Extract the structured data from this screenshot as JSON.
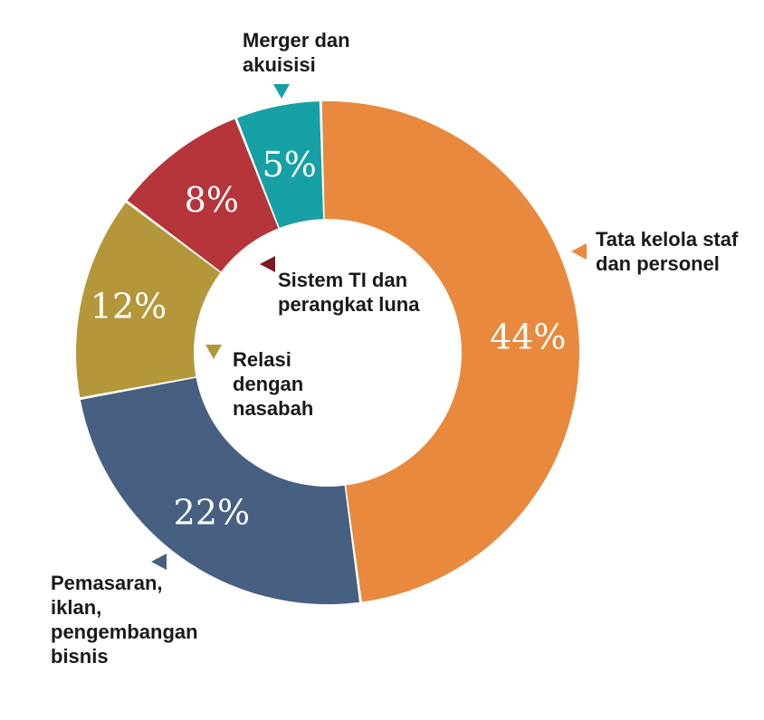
{
  "chart_data": {
    "type": "pie",
    "title": "",
    "slices": [
      {
        "label": [
          "Tata kelola staf",
          "dan personel"
        ],
        "value": 44,
        "value_label": "44%",
        "color": "#E8893D"
      },
      {
        "label": [
          "Pemasaran,",
          "iklan,",
          "pengembangan",
          "bisnis"
        ],
        "value": 22,
        "value_label": "22%",
        "color": "#475F80"
      },
      {
        "label": [
          "Relasi",
          "dengan",
          "nasabah"
        ],
        "value": 12,
        "value_label": "12%",
        "color": "#B3973A"
      },
      {
        "label": [
          "Sistem TI dan",
          "perangkat luna"
        ],
        "value": 8,
        "value_label": "8%",
        "color": "#B5353A"
      },
      {
        "label": [
          "Merger dan",
          "akuisisi"
        ],
        "value": 5,
        "value_label": "5%",
        "color": "#17A0A6"
      }
    ],
    "marker_colors": [
      "#E8893D",
      "#475F80",
      "#B3973A",
      "#7A1A22",
      "#17A0A6"
    ]
  }
}
